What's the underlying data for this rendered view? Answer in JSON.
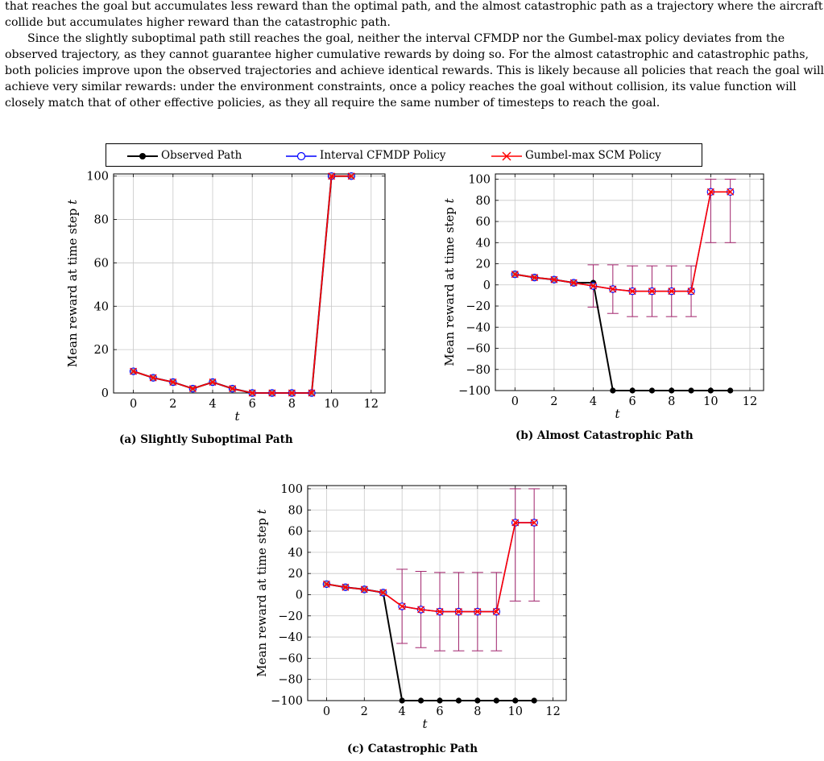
{
  "paragraph_lines": [
    "that reaches the goal but accumulates less reward than the optimal path, and the almost catastrophic path as a trajectory where the aircraft",
    "collide but accumulates higher reward than the catastrophic path.",
    "Since the slightly suboptimal path still reaches the goal, neither the interval CFMDP nor the Gumbel-max policy deviates from the",
    "observed trajectory, as they cannot guarantee higher cumulative rewards by doing so. For the almost catastrophic and catastrophic paths,",
    "both policies improve upon the observed trajectories and achieve identical rewards. This is likely because all policies that reach the goal will",
    "achieve very similar rewards: under the environment constraints, once a policy reaches the goal without collision, its value function will",
    "closely match that of other effective policies, as they all require the same number of timesteps to reach the goal."
  ],
  "legend": [
    {
      "label": "Observed Path",
      "color": "#000000",
      "marker": "dot"
    },
    {
      "label": "Interval CFMDP Policy",
      "color": "#0000ff",
      "marker": "circle"
    },
    {
      "label": "Gumbel-max SCM Policy",
      "color": "#ff0000",
      "marker": "x"
    }
  ],
  "captions": {
    "a": "(a) Slightly Suboptimal Path",
    "b": "(b) Almost Catastrophic Path",
    "c": "(c) Catastrophic Path"
  },
  "chart_data": [
    {
      "id": "a",
      "type": "line",
      "xlabel": "t",
      "ylabel": "Mean reward at time step t",
      "xlim": [
        -1,
        12.7
      ],
      "ylim": [
        0,
        101
      ],
      "xticks": [
        0,
        2,
        4,
        6,
        8,
        10,
        12
      ],
      "yticks": [
        0,
        20,
        40,
        60,
        80,
        100
      ],
      "grid": true,
      "series": [
        {
          "name": "Observed Path",
          "x": [
            0,
            1,
            2,
            3,
            4,
            5,
            6,
            7,
            8,
            9,
            10,
            11
          ],
          "y": [
            10,
            7,
            5,
            2,
            5,
            2,
            0,
            0,
            0,
            0,
            100,
            100
          ]
        },
        {
          "name": "Interval CFMDP Policy",
          "x": [
            0,
            1,
            2,
            3,
            4,
            5,
            6,
            7,
            8,
            9,
            10,
            11
          ],
          "y": [
            10,
            7,
            5,
            2,
            5,
            2,
            0,
            0,
            0,
            0,
            100,
            100
          ]
        },
        {
          "name": "Gumbel-max SCM Policy",
          "x": [
            0,
            1,
            2,
            3,
            4,
            5,
            6,
            7,
            8,
            9,
            10,
            11
          ],
          "y": [
            10,
            7,
            5,
            2,
            5,
            2,
            0,
            0,
            0,
            0,
            100,
            100
          ]
        }
      ],
      "error_bars": []
    },
    {
      "id": "b",
      "type": "line",
      "xlabel": "t",
      "ylabel": "Mean reward at time step t",
      "xlim": [
        -1,
        12.7
      ],
      "ylim": [
        -100,
        105
      ],
      "xticks": [
        0,
        2,
        4,
        6,
        8,
        10,
        12
      ],
      "yticks": [
        -100,
        -80,
        -60,
        -40,
        -20,
        0,
        20,
        40,
        60,
        80,
        100
      ],
      "grid": true,
      "series": [
        {
          "name": "Observed Path",
          "x": [
            0,
            1,
            2,
            3,
            4,
            5,
            6,
            7,
            8,
            9,
            10,
            11
          ],
          "y": [
            10,
            7,
            5,
            2,
            2,
            -100,
            -100,
            -100,
            -100,
            -100,
            -100,
            -100
          ]
        },
        {
          "name": "Interval CFMDP Policy",
          "x": [
            0,
            1,
            2,
            3,
            4,
            5,
            6,
            7,
            8,
            9,
            10,
            11
          ],
          "y": [
            10,
            7,
            5,
            2,
            -1,
            -4,
            -6,
            -6,
            -6,
            -6,
            88,
            88
          ]
        },
        {
          "name": "Gumbel-max SCM Policy",
          "x": [
            0,
            1,
            2,
            3,
            4,
            5,
            6,
            7,
            8,
            9,
            10,
            11
          ],
          "y": [
            10,
            7,
            5,
            2,
            -1,
            -4,
            -6,
            -6,
            -6,
            -6,
            88,
            88
          ]
        }
      ],
      "error_bars": [
        {
          "x": 4,
          "low": -21,
          "high": 19
        },
        {
          "x": 5,
          "low": -27,
          "high": 19
        },
        {
          "x": 6,
          "low": -30,
          "high": 18
        },
        {
          "x": 7,
          "low": -30,
          "high": 18
        },
        {
          "x": 8,
          "low": -30,
          "high": 18
        },
        {
          "x": 9,
          "low": -30,
          "high": 18
        },
        {
          "x": 10,
          "low": 40,
          "high": 100
        },
        {
          "x": 11,
          "low": 40,
          "high": 100
        }
      ]
    },
    {
      "id": "c",
      "type": "line",
      "xlabel": "t",
      "ylabel": "Mean reward at time step t",
      "xlim": [
        -1,
        12.7
      ],
      "ylim": [
        -100,
        103
      ],
      "xticks": [
        0,
        2,
        4,
        6,
        8,
        10,
        12
      ],
      "yticks": [
        -100,
        -80,
        -60,
        -40,
        -20,
        0,
        20,
        40,
        60,
        80,
        100
      ],
      "grid": true,
      "series": [
        {
          "name": "Observed Path",
          "x": [
            0,
            1,
            2,
            3,
            4,
            5,
            6,
            7,
            8,
            9,
            10,
            11
          ],
          "y": [
            10,
            7,
            5,
            2,
            -100,
            -100,
            -100,
            -100,
            -100,
            -100,
            -100,
            -100
          ]
        },
        {
          "name": "Interval CFMDP Policy",
          "x": [
            0,
            1,
            2,
            3,
            4,
            5,
            6,
            7,
            8,
            9,
            10,
            11
          ],
          "y": [
            10,
            7,
            5,
            2,
            -11,
            -14,
            -16,
            -16,
            -16,
            -16,
            68,
            68
          ]
        },
        {
          "name": "Gumbel-max SCM Policy",
          "x": [
            0,
            1,
            2,
            3,
            4,
            5,
            6,
            7,
            8,
            9,
            10,
            11
          ],
          "y": [
            10,
            7,
            5,
            2,
            -11,
            -14,
            -16,
            -16,
            -16,
            -16,
            68,
            68
          ]
        }
      ],
      "error_bars": [
        {
          "x": 4,
          "low": -46,
          "high": 24
        },
        {
          "x": 5,
          "low": -50,
          "high": 22
        },
        {
          "x": 6,
          "low": -53,
          "high": 21
        },
        {
          "x": 7,
          "low": -53,
          "high": 21
        },
        {
          "x": 8,
          "low": -53,
          "high": 21
        },
        {
          "x": 9,
          "low": -53,
          "high": 21
        },
        {
          "x": 10,
          "low": -6,
          "high": 100
        },
        {
          "x": 11,
          "low": -6,
          "high": 100
        }
      ]
    }
  ],
  "colors": {
    "observed": "#000000",
    "cfmdp": "#0000ff",
    "gumbel": "#ff0000",
    "errorbar": "#a0226b",
    "grid": "#c8c8c8"
  }
}
